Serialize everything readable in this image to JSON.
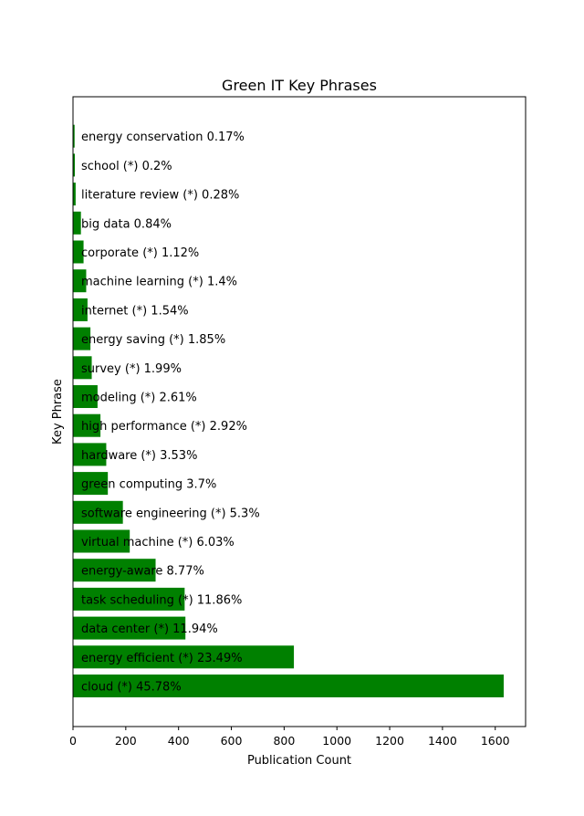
{
  "chart_data": {
    "type": "bar",
    "orientation": "horizontal",
    "title": "Green IT Key Phrases",
    "xlabel": "Publication Count",
    "ylabel": "Key Phrase",
    "xlim": [
      0,
      1715
    ],
    "xticks": [
      0,
      200,
      400,
      600,
      800,
      1000,
      1200,
      1400,
      1600
    ],
    "bar_color": "#008000",
    "bars": [
      {
        "label": "cloud (*) 45.78%",
        "value": 1632
      },
      {
        "label": "energy efficient (*) 23.49%",
        "value": 837
      },
      {
        "label": "data center (*) 11.94%",
        "value": 426
      },
      {
        "label": "task scheduling (*) 11.86%",
        "value": 423
      },
      {
        "label": "energy-aware 8.77%",
        "value": 313
      },
      {
        "label": "virtual machine (*) 6.03%",
        "value": 215
      },
      {
        "label": "software engineering (*) 5.3%",
        "value": 189
      },
      {
        "label": "green computing 3.7%",
        "value": 132
      },
      {
        "label": "hardware (*) 3.53%",
        "value": 126
      },
      {
        "label": "high performance (*) 2.92%",
        "value": 104
      },
      {
        "label": "modeling (*) 2.61%",
        "value": 93
      },
      {
        "label": "survey (*) 1.99%",
        "value": 71
      },
      {
        "label": "energy saving (*) 1.85%",
        "value": 66
      },
      {
        "label": "internet (*) 1.54%",
        "value": 55
      },
      {
        "label": "machine learning (*) 1.4%",
        "value": 50
      },
      {
        "label": "corporate (*) 1.12%",
        "value": 40
      },
      {
        "label": "big data 0.84%",
        "value": 30
      },
      {
        "label": "literature review (*) 0.28%",
        "value": 10
      },
      {
        "label": "school (*) 0.2%",
        "value": 7
      },
      {
        "label": "energy conservation 0.17%",
        "value": 6
      }
    ]
  }
}
